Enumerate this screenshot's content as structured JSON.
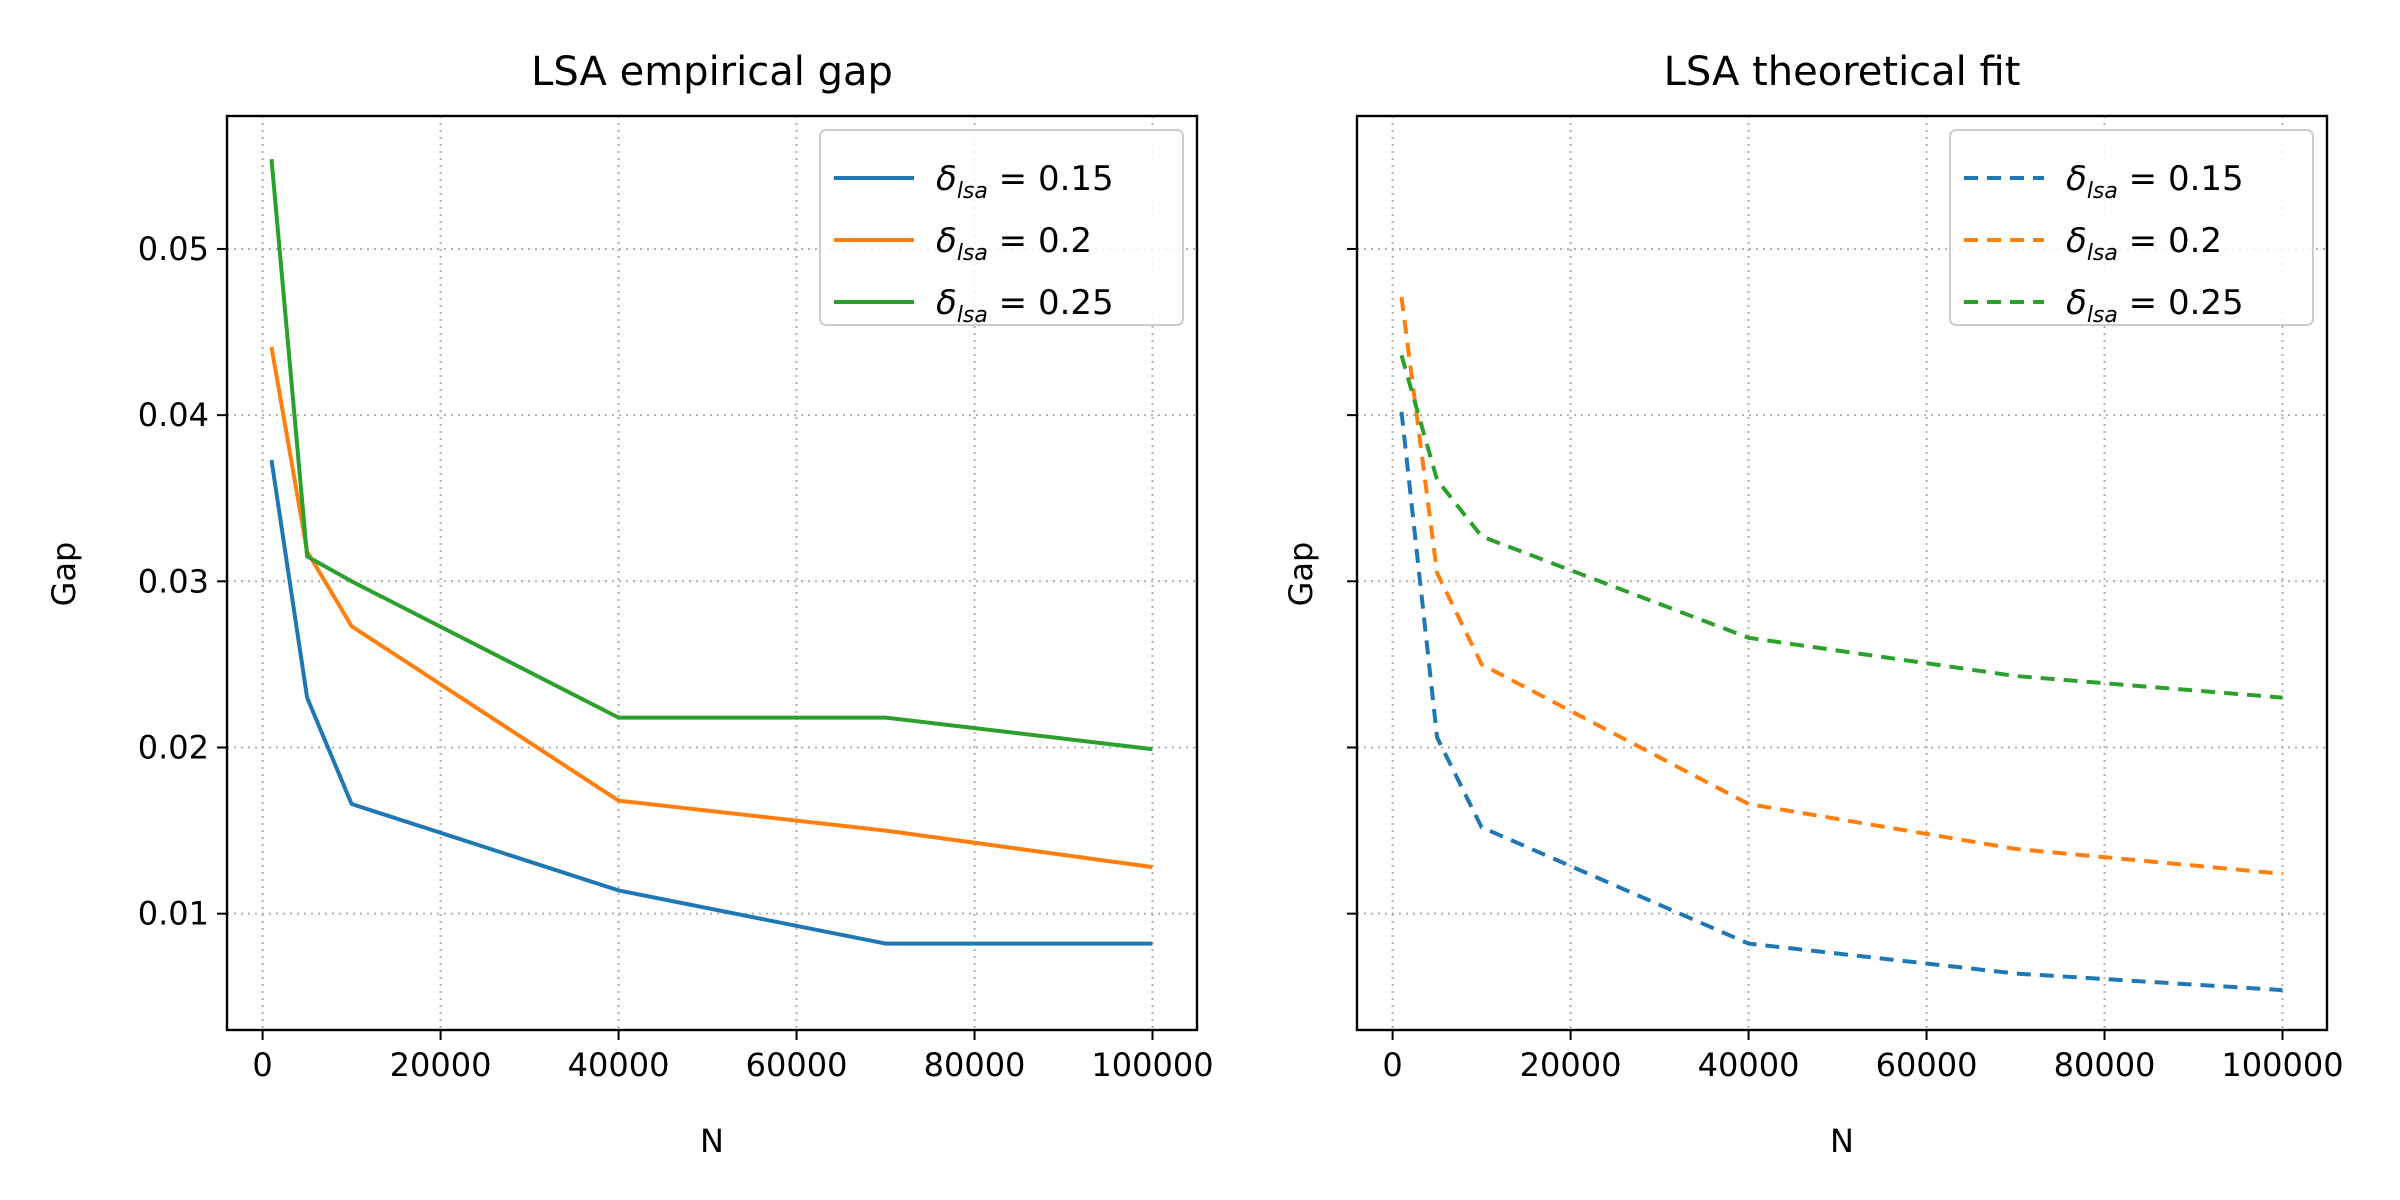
{
  "chart_data": [
    {
      "type": "line",
      "title": "LSA empirical gap",
      "xlabel": "N",
      "ylabel": "Gap",
      "xlim": [
        -4000,
        105000
      ],
      "ylim": [
        0.003,
        0.058
      ],
      "xticks": [
        0,
        20000,
        40000,
        60000,
        80000,
        100000
      ],
      "xtick_labels": [
        "0",
        "20000",
        "40000",
        "60000",
        "80000",
        "100000"
      ],
      "yticks": [
        0.01,
        0.02,
        0.03,
        0.04,
        0.05
      ],
      "ytick_labels": [
        "0.01",
        "0.02",
        "0.03",
        "0.04",
        "0.05"
      ],
      "show_ytick_labels": true,
      "grid": true,
      "linestyle": "solid",
      "legend_position": "top-right",
      "x": [
        1000,
        5000,
        10000,
        40000,
        70000,
        100000
      ],
      "series": [
        {
          "name": "δ_lsa = 0.15",
          "symbol": "δ",
          "sub": "lsa",
          "value_text": "0.15",
          "color": "#1f77b4",
          "values": [
            0.0373,
            0.023,
            0.0166,
            0.0114,
            0.0082,
            0.0082
          ]
        },
        {
          "name": "δ_lsa = 0.2",
          "symbol": "δ",
          "sub": "lsa",
          "value_text": "0.2",
          "color": "#ff7f0e",
          "values": [
            0.0441,
            0.0318,
            0.0273,
            0.0168,
            0.015,
            0.0128
          ]
        },
        {
          "name": "δ_lsa = 0.25",
          "symbol": "δ",
          "sub": "lsa",
          "value_text": "0.25",
          "color": "#2ca02c",
          "values": [
            0.0554,
            0.0315,
            0.03,
            0.0218,
            0.0218,
            0.0199
          ]
        }
      ]
    },
    {
      "type": "line",
      "title": "LSA theoretical fit",
      "xlabel": "N",
      "ylabel": "Gap",
      "xlim": [
        -4000,
        105000
      ],
      "ylim": [
        0.003,
        0.058
      ],
      "xticks": [
        0,
        20000,
        40000,
        60000,
        80000,
        100000
      ],
      "xtick_labels": [
        "0",
        "20000",
        "40000",
        "60000",
        "80000",
        "100000"
      ],
      "yticks": [
        0.01,
        0.02,
        0.03,
        0.04,
        0.05
      ],
      "ytick_labels": [
        "0.01",
        "0.02",
        "0.03",
        "0.04",
        "0.05"
      ],
      "show_ytick_labels": false,
      "grid": true,
      "linestyle": "dashed",
      "legend_position": "top-right",
      "x": [
        1000,
        5000,
        10000,
        40000,
        70000,
        100000
      ],
      "series": [
        {
          "name": "δ_lsa = 0.15",
          "symbol": "δ",
          "sub": "lsa",
          "value_text": "0.15",
          "color": "#1f77b4",
          "values": [
            0.0402,
            0.0206,
            0.0152,
            0.0082,
            0.0064,
            0.0054
          ]
        },
        {
          "name": "δ_lsa = 0.2",
          "symbol": "δ",
          "sub": "lsa",
          "value_text": "0.2",
          "color": "#ff7f0e",
          "values": [
            0.0471,
            0.0305,
            0.025,
            0.0166,
            0.0139,
            0.0124
          ]
        },
        {
          "name": "δ_lsa = 0.25",
          "symbol": "δ",
          "sub": "lsa",
          "value_text": "0.25",
          "color": "#2ca02c",
          "values": [
            0.0436,
            0.0361,
            0.0327,
            0.0266,
            0.0243,
            0.023
          ]
        }
      ]
    }
  ]
}
